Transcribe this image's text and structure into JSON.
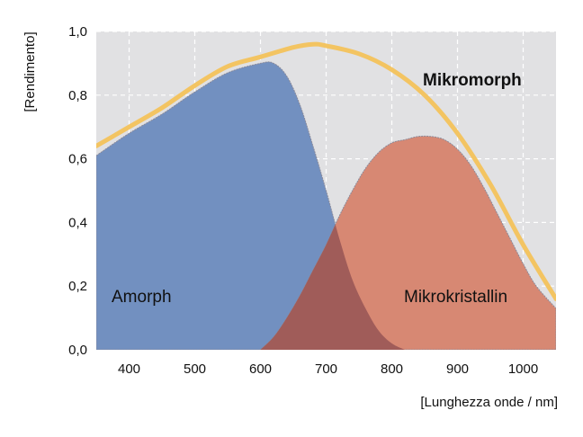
{
  "chart_data": {
    "type": "area",
    "title": "",
    "xlabel": "[Lunghezza onde / nm]",
    "ylabel": "[Rendimento]",
    "xlim": [
      350,
      1050
    ],
    "ylim": [
      0,
      1.0
    ],
    "xticks": [
      400,
      500,
      600,
      700,
      800,
      900,
      1000
    ],
    "xtick_labels": [
      "400",
      "500",
      "600",
      "700",
      "800",
      "900",
      "1000"
    ],
    "yticks": [
      0,
      0.2,
      0.4,
      0.6,
      0.8,
      1.0
    ],
    "ytick_labels": [
      "0,0",
      "0,2",
      "0,4",
      "0,6",
      "0,8",
      "1,0"
    ],
    "grid": true,
    "series": [
      {
        "name": "Amorph",
        "label": "Amorph",
        "kind": "area",
        "color": "#7290c0",
        "x": [
          350,
          400,
          450,
          500,
          550,
          600,
          620,
          640,
          660,
          680,
          700,
          720,
          740,
          760,
          780,
          800,
          820
        ],
        "y": [
          0.61,
          0.68,
          0.74,
          0.81,
          0.87,
          0.9,
          0.9,
          0.86,
          0.77,
          0.64,
          0.5,
          0.35,
          0.22,
          0.13,
          0.06,
          0.02,
          0.0
        ]
      },
      {
        "name": "Mikrokristallin",
        "label": "Mikrokristallin",
        "kind": "area",
        "color": "#d78873",
        "x": [
          600,
          620,
          640,
          660,
          680,
          700,
          720,
          740,
          760,
          780,
          800,
          820,
          840,
          860,
          880,
          900,
          920,
          940,
          960,
          980,
          1000,
          1020,
          1050
        ],
        "y": [
          0.0,
          0.04,
          0.1,
          0.17,
          0.25,
          0.33,
          0.42,
          0.5,
          0.57,
          0.62,
          0.65,
          0.66,
          0.67,
          0.67,
          0.66,
          0.63,
          0.58,
          0.51,
          0.43,
          0.35,
          0.27,
          0.2,
          0.13
        ]
      },
      {
        "name": "Mikromorph",
        "label": "Mikromorph",
        "kind": "line",
        "color": "#f3c462",
        "x": [
          350,
          400,
          450,
          500,
          550,
          600,
          650,
          680,
          700,
          750,
          800,
          850,
          900,
          950,
          1000,
          1050
        ],
        "y": [
          0.64,
          0.7,
          0.76,
          0.83,
          0.89,
          0.92,
          0.95,
          0.96,
          0.955,
          0.93,
          0.88,
          0.8,
          0.68,
          0.52,
          0.33,
          0.16
        ]
      }
    ],
    "overlap_color": "#a05c59",
    "plot_background": "#e1e1e3"
  }
}
